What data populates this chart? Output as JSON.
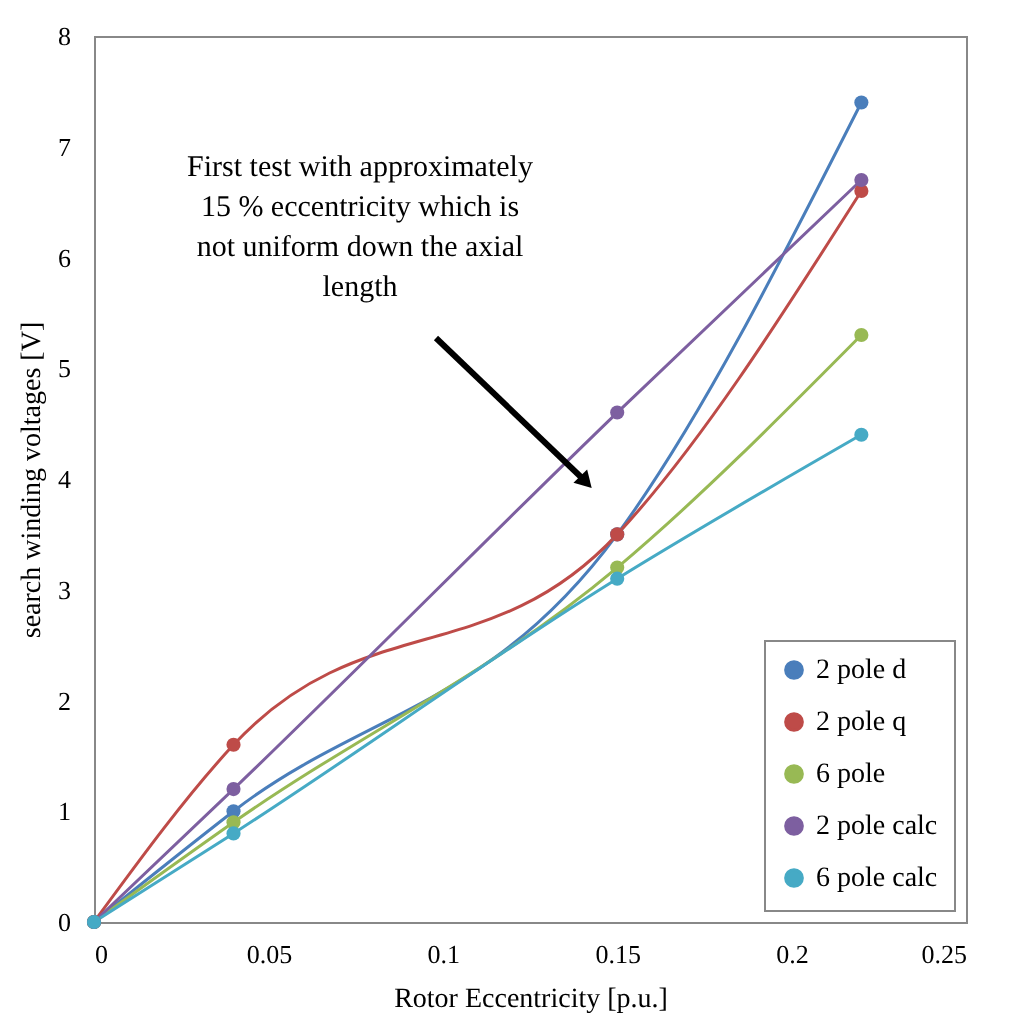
{
  "chart_data": {
    "type": "line",
    "xlabel": "Rotor Eccentricity  [p.u.]",
    "ylabel": "search winding voltages [V]",
    "x": [
      0,
      0.04,
      0.15,
      0.22
    ],
    "series": [
      {
        "name": "2 pole d",
        "color": "#4a7ebb",
        "values": [
          0,
          1.0,
          3.5,
          7.4
        ]
      },
      {
        "name": "2 pole q",
        "color": "#be4b48",
        "values": [
          0,
          1.6,
          3.5,
          6.6
        ]
      },
      {
        "name": "6 pole",
        "color": "#98b954",
        "values": [
          0,
          0.9,
          3.2,
          5.3
        ]
      },
      {
        "name": "2 pole calc",
        "color": "#7d5fa0",
        "values": [
          0,
          1.2,
          4.6,
          6.7
        ]
      },
      {
        "name": "6 pole calc",
        "color": "#46aac5",
        "values": [
          0,
          0.8,
          3.1,
          4.4
        ]
      }
    ],
    "xlim": [
      0,
      0.25
    ],
    "xticks": [
      0,
      0.05,
      0.1,
      0.15,
      0.2,
      0.25
    ],
    "ylim": [
      0,
      8
    ],
    "yticks": [
      0,
      1,
      2,
      3,
      4,
      5,
      6,
      7,
      8
    ],
    "annotations": [
      "First test with approximately\n15 % eccentricity which is\nnot uniform down the axial\nlength"
    ],
    "grid": false,
    "legend": "bottom right",
    "marker": "circle",
    "line_style": "solid"
  }
}
